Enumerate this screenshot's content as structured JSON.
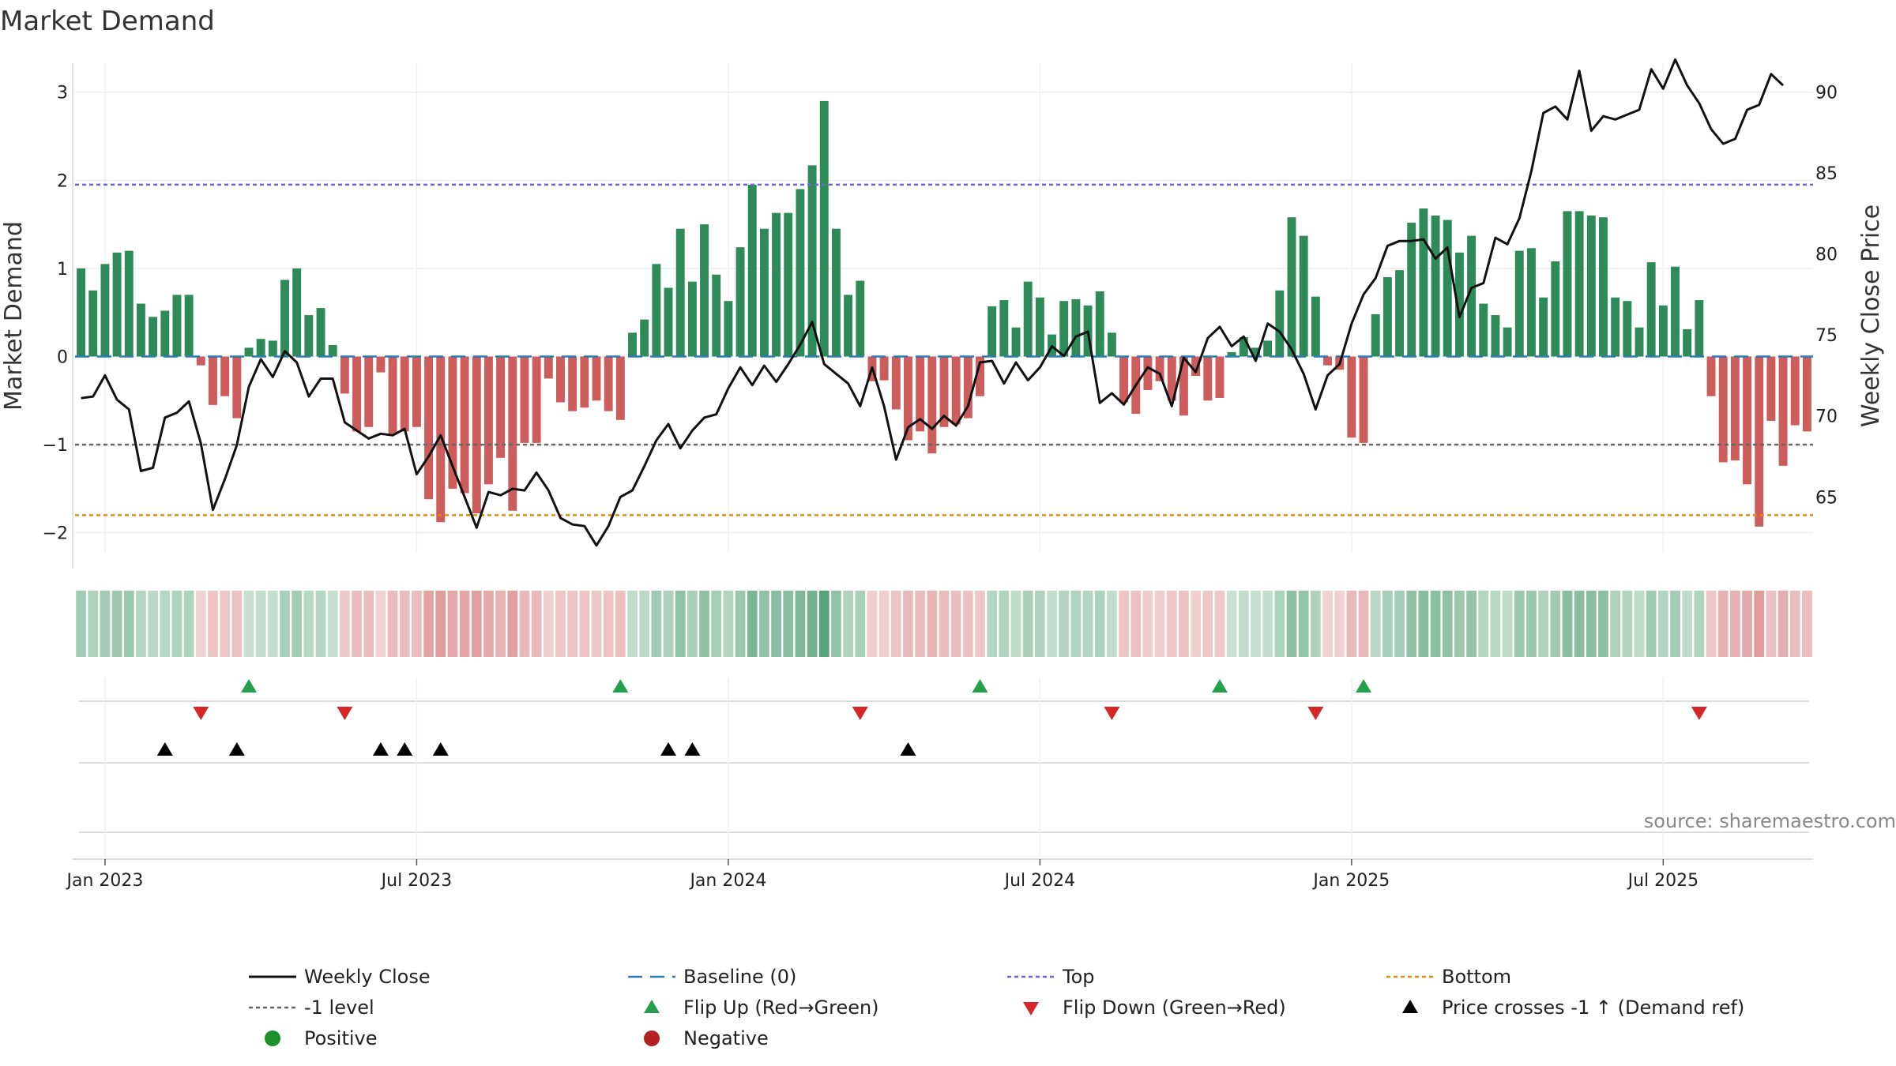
{
  "chart_data": {
    "type": "bar",
    "title": "Market Demand",
    "ylabel": "Market Demand",
    "y2label": "Weekly Close Price",
    "ylim": [
      -2.2,
      3.15
    ],
    "y2lim": [
      61.7,
      90.8
    ],
    "yticks": [
      "3",
      "2",
      "1",
      "0",
      "−1",
      "−2"
    ],
    "yticks_values": [
      3,
      2,
      1,
      0,
      -1,
      -2
    ],
    "y2ticks": [
      "90",
      "85",
      "80",
      "75",
      "70",
      "65"
    ],
    "y2ticks_values": [
      90,
      85,
      80,
      75,
      70,
      65
    ],
    "xticks": [
      "Jan 2023",
      "Jul 2023",
      "Jan 2024",
      "Jul 2024",
      "Jan 2025",
      "Jul 2025"
    ],
    "xticks_values": [
      2,
      28,
      54,
      80,
      106,
      132
    ],
    "reference_lines": {
      "top": 1.95,
      "bottom": -1.8,
      "minus_one": -1
    },
    "series": [
      {
        "name": "Market Demand",
        "type": "bar",
        "values": [
          1.0,
          0.75,
          1.05,
          1.18,
          1.2,
          0.6,
          0.45,
          0.52,
          0.7,
          0.7,
          -0.1,
          -0.55,
          -0.45,
          -0.7,
          0.1,
          0.2,
          0.18,
          0.87,
          1.0,
          0.47,
          0.55,
          0.13,
          -0.42,
          -0.85,
          -0.8,
          -0.18,
          -0.88,
          -0.85,
          -0.8,
          -1.62,
          -1.88,
          -1.5,
          -1.55,
          -1.78,
          -1.45,
          -1.15,
          -1.75,
          -0.98,
          -0.98,
          -0.25,
          -0.52,
          -0.62,
          -0.58,
          -0.5,
          -0.62,
          -0.72,
          0.27,
          0.42,
          1.05,
          0.78,
          1.45,
          0.85,
          1.5,
          0.93,
          0.63,
          1.24,
          1.95,
          1.45,
          1.63,
          1.63,
          1.9,
          2.17,
          2.9,
          1.45,
          0.7,
          0.86,
          -0.28,
          -0.27,
          -0.6,
          -0.95,
          -0.85,
          -1.1,
          -0.8,
          -0.77,
          -0.7,
          -0.45,
          0.57,
          0.64,
          0.33,
          0.85,
          0.67,
          0.25,
          0.63,
          0.65,
          0.58,
          0.74,
          0.27,
          -0.52,
          -0.65,
          -0.38,
          -0.28,
          -0.5,
          -0.67,
          -0.22,
          -0.5,
          -0.47,
          0.05,
          0.22,
          0.1,
          0.18,
          0.75,
          1.58,
          1.37,
          0.68,
          -0.1,
          -0.15,
          -0.92,
          -0.98,
          0.48,
          0.9,
          0.98,
          1.52,
          1.68,
          1.6,
          1.55,
          1.18,
          1.37,
          0.6,
          0.47,
          0.33,
          1.2,
          1.23,
          0.67,
          1.08,
          1.65,
          1.65,
          1.6,
          1.58,
          0.67,
          0.63,
          0.33,
          1.07,
          0.58,
          1.02,
          0.31,
          0.64,
          -0.45,
          -1.2,
          -1.18,
          -1.45,
          -1.93,
          -0.73,
          -1.24,
          -0.78,
          -0.85
        ]
      },
      {
        "name": "Weekly Close",
        "type": "line",
        "axis": "right",
        "values": [
          71.1,
          71.2,
          72.5,
          71.0,
          70.4,
          66.6,
          66.8,
          69.9,
          70.2,
          70.9,
          68.3,
          64.2,
          66.1,
          68.2,
          71.8,
          73.5,
          72.4,
          74.0,
          73.3,
          71.2,
          72.3,
          72.3,
          69.6,
          69.1,
          68.6,
          68.9,
          68.8,
          69.2,
          66.4,
          67.5,
          68.8,
          66.9,
          65.0,
          63.1,
          65.3,
          65.1,
          65.5,
          65.4,
          66.5,
          65.4,
          63.7,
          63.3,
          63.2,
          62.0,
          63.2,
          65.0,
          65.4,
          66.9,
          68.5,
          69.5,
          68.0,
          69.1,
          69.9,
          70.1,
          71.7,
          73.0,
          71.9,
          73.1,
          72.1,
          73.2,
          74.4,
          75.8,
          73.2,
          72.6,
          72.0,
          70.6,
          73.0,
          70.6,
          67.3,
          69.3,
          69.8,
          69.2,
          70.0,
          69.4,
          70.6,
          73.3,
          73.4,
          72.0,
          73.3,
          72.2,
          73.0,
          74.3,
          73.7,
          74.9,
          75.2,
          70.8,
          71.4,
          70.7,
          71.9,
          73.0,
          72.6,
          70.6,
          73.6,
          72.7,
          74.8,
          75.5,
          74.3,
          74.9,
          73.4,
          75.7,
          75.2,
          74.1,
          72.6,
          70.4,
          72.5,
          73.2,
          75.7,
          77.5,
          78.5,
          80.5,
          80.8,
          80.8,
          80.9,
          79.7,
          80.4,
          76.1,
          77.9,
          78.2,
          81.0,
          80.6,
          82.2,
          85.1,
          88.7,
          89.1,
          88.3,
          91.3,
          87.6,
          88.5,
          88.3,
          88.6,
          88.9,
          91.4,
          90.2,
          92.0,
          90.4,
          89.3,
          87.7,
          86.8,
          87.1,
          88.9,
          89.2,
          91.1,
          90.4
        ]
      }
    ],
    "flip_up_indices": [
      14,
      45,
      75,
      95,
      107
    ],
    "flip_down_indices": [
      10,
      22,
      65,
      86,
      103,
      135
    ],
    "price_cross_indices": [
      7,
      13,
      25,
      27,
      30,
      49,
      51,
      69
    ],
    "legend": [
      "Weekly Close",
      "Baseline (0)",
      "Top",
      "Bottom",
      "-1 level",
      "Flip Up (Red→Green)",
      "Flip Down (Green→Red)",
      "Price crosses -1 ↑ (Demand ref)",
      "Positive",
      "Negative"
    ],
    "source": "source: sharemaestro.com"
  },
  "colors": {
    "positive": "#2e8b57",
    "negative": "#cd5c5c",
    "line": "#111111",
    "top": "#6a6ad6",
    "bottom": "#e08c10",
    "minus_one": "#666666",
    "baseline": "#2a7ab8",
    "flip_up": "#22a04b",
    "flip_down": "#d62728",
    "cross": "#000000",
    "positive_dot": "#1f8f2a",
    "negative_dot": "#b22222"
  }
}
